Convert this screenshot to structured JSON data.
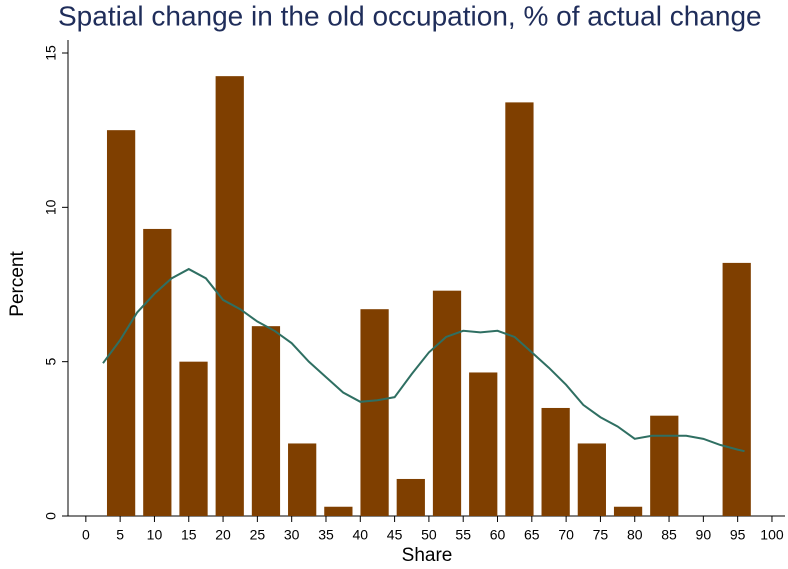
{
  "chart_data": {
    "type": "histogram",
    "title": "Spatial change in the old occupation, % of actual change",
    "x_label": "Share",
    "y_label": "Percent",
    "bins": [
      2.5,
      7.778,
      13.056,
      18.333,
      23.611,
      28.889,
      34.167,
      39.444,
      44.722,
      50,
      55.278,
      60.556,
      65.833,
      71.111,
      76.389,
      81.667,
      86.944,
      92.222,
      97.5
    ],
    "values": [
      12.5,
      9.3,
      5.0,
      14.25,
      6.15,
      2.35,
      0.3,
      6.7,
      1.2,
      7.3,
      4.65,
      13.4,
      3.5,
      2.35,
      0.3,
      3.25,
      0,
      8.2
    ],
    "color": "#7f3f00",
    "density": {
      "color": "#2f6f62",
      "x": [
        2.5,
        5,
        7.5,
        10,
        12.5,
        15,
        17.5,
        20,
        22.5,
        25,
        27.5,
        30,
        32.5,
        35,
        37.5,
        40,
        42.5,
        45,
        47.5,
        50,
        52.5,
        55,
        57.5,
        60,
        62.5,
        65,
        67.5,
        70,
        72.5,
        75,
        77.5,
        80,
        82.5,
        85,
        87.5,
        90,
        92.5,
        95,
        96
      ],
      "values": [
        4.95,
        5.7,
        6.6,
        7.2,
        7.7,
        8.0,
        7.7,
        7.0,
        6.7,
        6.3,
        6.0,
        5.6,
        5.0,
        4.5,
        4.0,
        3.7,
        3.75,
        3.85,
        4.6,
        5.3,
        5.8,
        6.0,
        5.95,
        6.0,
        5.8,
        5.3,
        4.8,
        4.25,
        3.6,
        3.2,
        2.9,
        2.5,
        2.6,
        2.6,
        2.6,
        2.5,
        2.3,
        2.15,
        2.1
      ]
    },
    "xlim": [
      -2.6,
      101.9
    ],
    "ylim": [
      0,
      15
    ],
    "xticks": [
      0,
      5,
      10,
      15,
      20,
      25,
      30,
      35,
      40,
      45,
      50,
      55,
      60,
      65,
      70,
      75,
      80,
      85,
      90,
      95,
      100
    ],
    "yticks": [
      0,
      5,
      10,
      15
    ]
  }
}
